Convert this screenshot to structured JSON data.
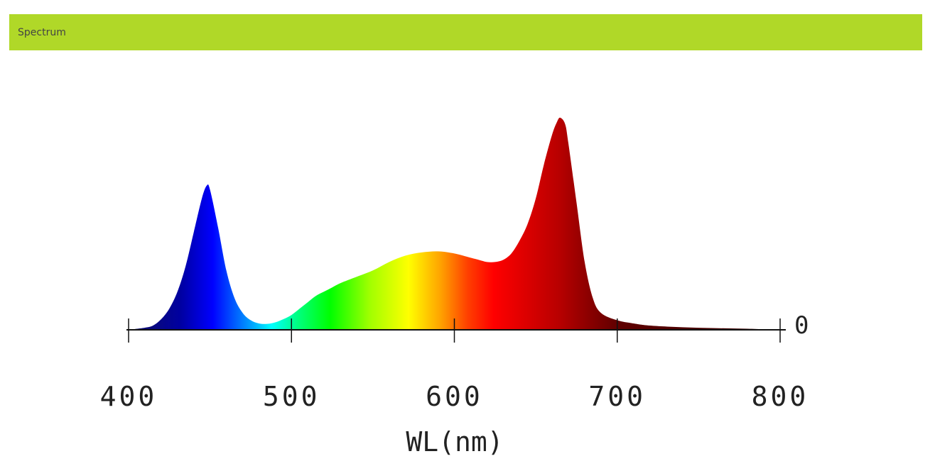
{
  "header": {
    "title": "Spectrum",
    "accent_color": "#b0d828"
  },
  "chart_data": {
    "type": "area",
    "title": "",
    "xlabel": "WL(nm)",
    "ylabel": "",
    "xlim": [
      400,
      800
    ],
    "ylim": [
      0,
      1
    ],
    "xticks": [
      400,
      500,
      600,
      700,
      800
    ],
    "tick_labels": [
      "400",
      "500",
      "600",
      "700",
      "800"
    ],
    "yticks": [
      0
    ],
    "y_tick_labels": [
      "0"
    ],
    "fill": "visible-spectrum color gradient",
    "grid": false,
    "legend": "none",
    "x": [
      400,
      410,
      415,
      420,
      425,
      430,
      435,
      440,
      445,
      448,
      450,
      455,
      460,
      465,
      470,
      475,
      480,
      485,
      490,
      495,
      500,
      505,
      510,
      515,
      520,
      525,
      530,
      540,
      550,
      560,
      570,
      580,
      590,
      600,
      610,
      615,
      620,
      625,
      630,
      635,
      640,
      645,
      650,
      655,
      660,
      663,
      665,
      668,
      670,
      675,
      680,
      685,
      690,
      700,
      710,
      720,
      740,
      760,
      780,
      800
    ],
    "y": [
      0,
      0.01,
      0.02,
      0.05,
      0.1,
      0.18,
      0.3,
      0.46,
      0.62,
      0.68,
      0.66,
      0.48,
      0.28,
      0.15,
      0.08,
      0.045,
      0.03,
      0.028,
      0.035,
      0.05,
      0.07,
      0.1,
      0.13,
      0.16,
      0.18,
      0.2,
      0.22,
      0.25,
      0.28,
      0.32,
      0.35,
      0.365,
      0.37,
      0.36,
      0.34,
      0.33,
      0.32,
      0.32,
      0.33,
      0.36,
      0.42,
      0.5,
      0.62,
      0.78,
      0.92,
      0.98,
      1.0,
      0.97,
      0.88,
      0.6,
      0.32,
      0.15,
      0.08,
      0.045,
      0.03,
      0.02,
      0.012,
      0.008,
      0.005,
      0
    ]
  }
}
